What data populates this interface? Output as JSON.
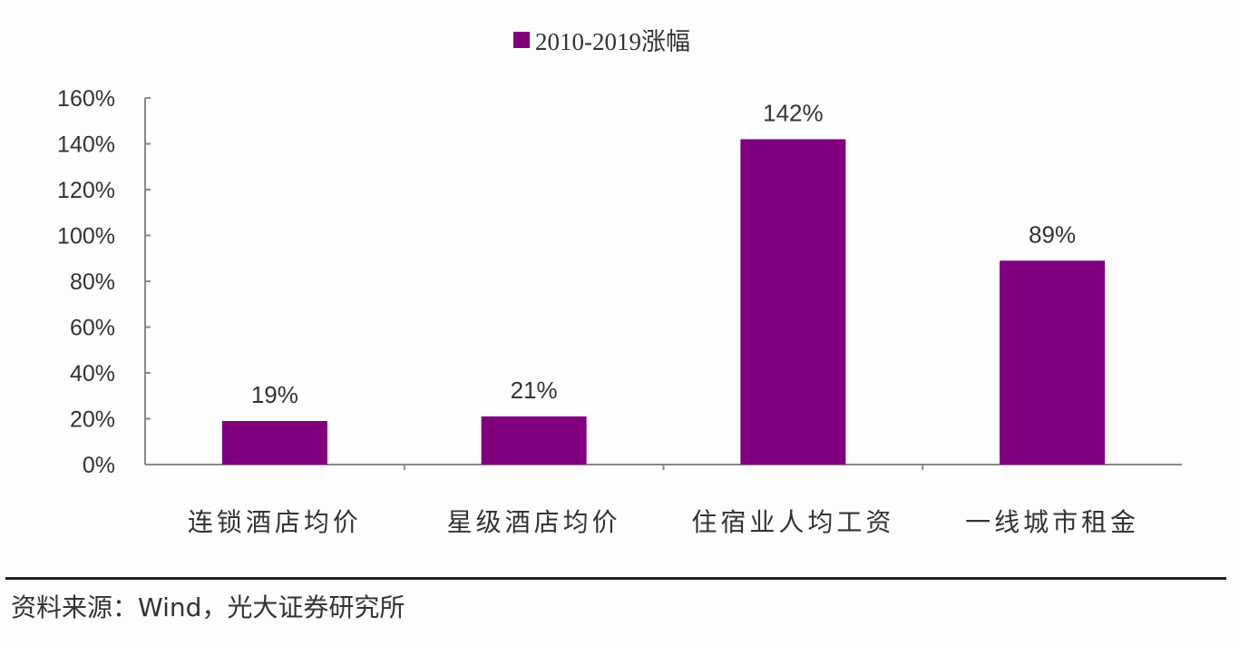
{
  "chart_data": {
    "type": "bar",
    "categories": [
      "连锁酒店均价",
      "星级酒店均价",
      "住宿业人均工资",
      "一线城市租金"
    ],
    "series": [
      {
        "name": "2010-2019涨幅",
        "values": [
          19,
          21,
          142,
          89
        ]
      }
    ],
    "data_labels": [
      "19%",
      "21%",
      "142%",
      "89%"
    ],
    "ylim": [
      0,
      160
    ],
    "yticks": [
      0,
      20,
      40,
      60,
      80,
      100,
      120,
      140,
      160
    ],
    "ytick_labels": [
      "0%",
      "20%",
      "40%",
      "60%",
      "80%",
      "100%",
      "120%",
      "140%",
      "160%"
    ],
    "xlabel": "",
    "ylabel": "",
    "grid": false,
    "legend": "top-center",
    "colors": {
      "bar": "#800080"
    }
  },
  "legend": {
    "label": "2010-2019涨幅"
  },
  "source": "资料来源：Wind，光大证券研究所"
}
